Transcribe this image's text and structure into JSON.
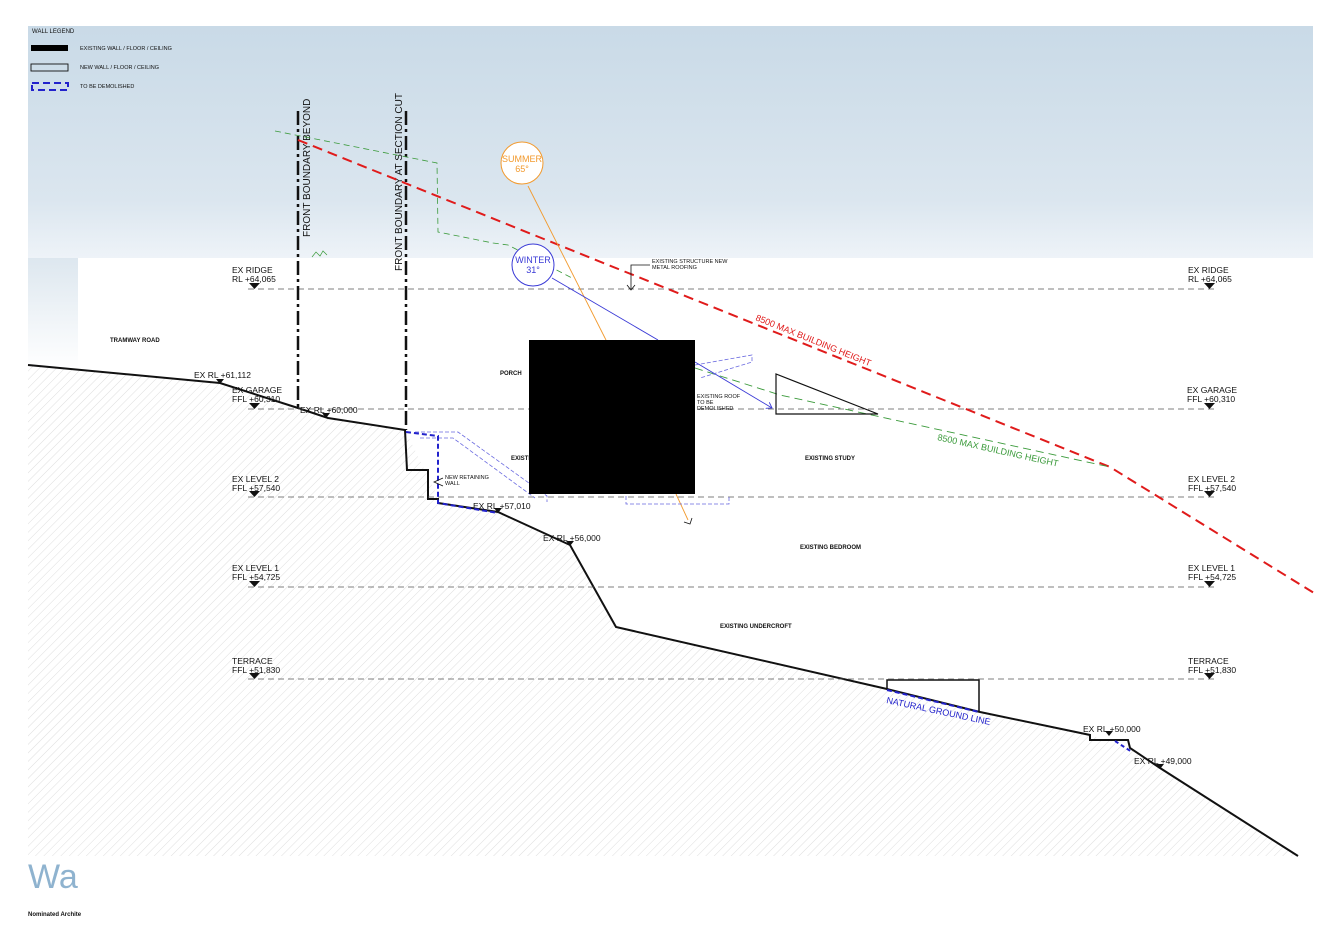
{
  "legend": {
    "title": "WALL LEGEND",
    "items": [
      {
        "label": "EXISTING WALL / FLOOR / CEILING"
      },
      {
        "label": "NEW WALL / FLOOR / CEILING"
      },
      {
        "label": "TO BE DEMOLISHED"
      }
    ]
  },
  "levels": [
    {
      "name": "EX RIDGE",
      "value": "RL +64,065"
    },
    {
      "name": "EX GARAGE",
      "value": "FFL +60,310"
    },
    {
      "name": "EX LEVEL 2",
      "value": "FFL +57,540"
    },
    {
      "name": "EX LEVEL 1",
      "value": "FFL +54,725"
    },
    {
      "name": "TERRACE",
      "value": "FFL +51,830"
    }
  ],
  "ground_rls": [
    "EX RL +61,112",
    "EX RL +60,000",
    "EX RL +57,010",
    "EX RL +56,000",
    "EX RL +50,000",
    "EX RL +49,000"
  ],
  "boundaries": {
    "beyond": "FRONT BOUNDARY BEYOND",
    "cut": "FRONT BOUNDARY AT SECTION CUT"
  },
  "sun": {
    "summer_label": "SUMMER",
    "summer_angle": "65°",
    "winter_label": "WINTER",
    "winter_angle": "31°",
    "summer_color": "#f29a2e",
    "winter_color": "#3a3ad6"
  },
  "height_limits": {
    "red": "8500 MAX BUILDING HEIGHT",
    "green": "8500 MAX BUILDING HEIGHT",
    "red_color": "#e01b1b",
    "green_color": "#3a9a3a"
  },
  "room_labels": {
    "tramway_road": "TRAMWAY ROAD",
    "porch": "PORCH",
    "existing_partial": "EXISTI",
    "existing_study": "EXISTING STUDY",
    "existing_bedroom": "EXISTING BEDROOM",
    "existing_undercroft": "EXISTING UNDERCROFT"
  },
  "annotations": {
    "structure_line1": "EXISTING STRUCTURE NEW",
    "structure_line2": "METAL ROOFING",
    "roof_line1": "EXISTING ROOF",
    "roof_line2": "TO BE",
    "roof_line3": "DEMOLISHED",
    "retaining_line1": "NEW RETAINING",
    "retaining_line2": "WALL",
    "natural_ground": "NATURAL GROUND LINE"
  },
  "footer": {
    "watermark": "Wa",
    "firm": "Nominated Archite"
  },
  "colors": {
    "sky_top": "#c9dae7",
    "sky_bottom": "#e8f0f6",
    "hatch": "#c8c8c8",
    "demolish": "#2222cc"
  }
}
